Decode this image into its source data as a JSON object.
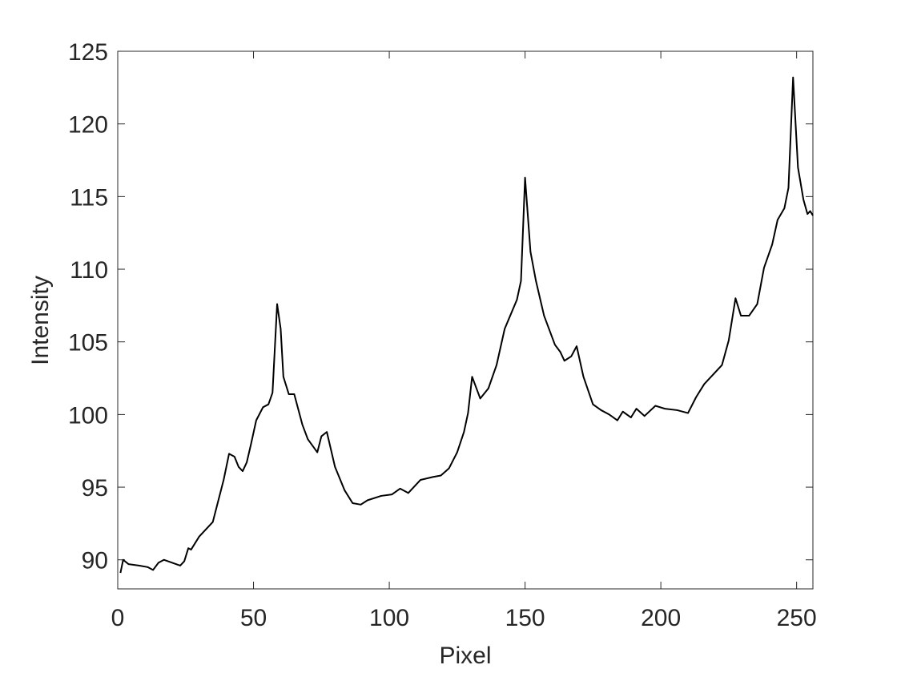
{
  "chart_data": {
    "type": "line",
    "x_label": "Pixel",
    "y_label": "Intensity",
    "x": [
      1,
      2,
      4,
      8,
      11,
      13,
      15,
      17,
      20,
      23,
      24.5,
      26,
      27,
      30,
      32,
      35,
      39,
      41,
      43,
      44.5,
      46,
      47.5,
      49,
      51,
      53.5,
      55.5,
      57,
      58.7,
      60,
      61,
      63,
      65,
      68,
      70,
      73.5,
      75,
      77,
      80,
      83.5,
      86.5,
      89.5,
      92,
      97,
      101,
      104,
      107,
      111.5,
      116,
      119,
      122,
      125,
      127.5,
      129,
      130.5,
      133.5,
      136.5,
      139.5,
      142.5,
      147,
      148.5,
      150,
      152,
      154,
      157,
      161,
      163,
      164.5,
      167,
      169,
      171.5,
      175,
      178,
      181,
      184,
      186,
      189,
      191,
      194,
      198,
      201.5,
      206,
      210,
      213,
      216,
      219,
      222.5,
      225,
      227.5,
      229.5,
      232.5,
      235.5,
      238,
      241,
      243,
      245.5,
      247,
      248.7,
      250.5,
      252.5,
      254,
      255,
      256
    ],
    "series": [
      {
        "name": "Intensity",
        "color": "#000000",
        "values": [
          89.1,
          90.0,
          89.7,
          89.6,
          89.5,
          89.3,
          89.8,
          90.0,
          89.8,
          89.6,
          89.9,
          90.8,
          90.7,
          91.6,
          92.0,
          92.6,
          95.5,
          97.3,
          97.1,
          96.4,
          96.1,
          96.7,
          97.9,
          99.6,
          100.5,
          100.7,
          101.5,
          107.6,
          105.9,
          102.6,
          101.4,
          101.4,
          99.3,
          98.3,
          97.4,
          98.5,
          98.8,
          96.4,
          94.8,
          93.9,
          93.8,
          94.1,
          94.4,
          94.5,
          94.9,
          94.6,
          95.5,
          95.7,
          95.8,
          96.3,
          97.4,
          98.8,
          100.1,
          102.6,
          101.1,
          101.8,
          103.4,
          105.9,
          107.9,
          109.2,
          116.3,
          111.2,
          109.2,
          106.8,
          104.8,
          104.3,
          103.7,
          104.0,
          104.7,
          102.6,
          100.7,
          100.3,
          100.0,
          99.6,
          100.2,
          99.8,
          100.4,
          99.9,
          100.6,
          100.4,
          100.3,
          100.1,
          101.2,
          102.1,
          102.7,
          103.4,
          105.1,
          108.0,
          106.8,
          106.8,
          107.6,
          110.1,
          111.7,
          113.4,
          114.2,
          115.6,
          123.2,
          117.0,
          114.8,
          113.8,
          114.0,
          113.7
        ]
      }
    ],
    "xlim": [
      0,
      256
    ],
    "ylim": [
      88,
      125
    ],
    "xticks": [
      0,
      50,
      100,
      150,
      200,
      250
    ],
    "yticks": [
      90,
      95,
      100,
      105,
      110,
      115,
      120,
      125
    ],
    "box": true
  }
}
